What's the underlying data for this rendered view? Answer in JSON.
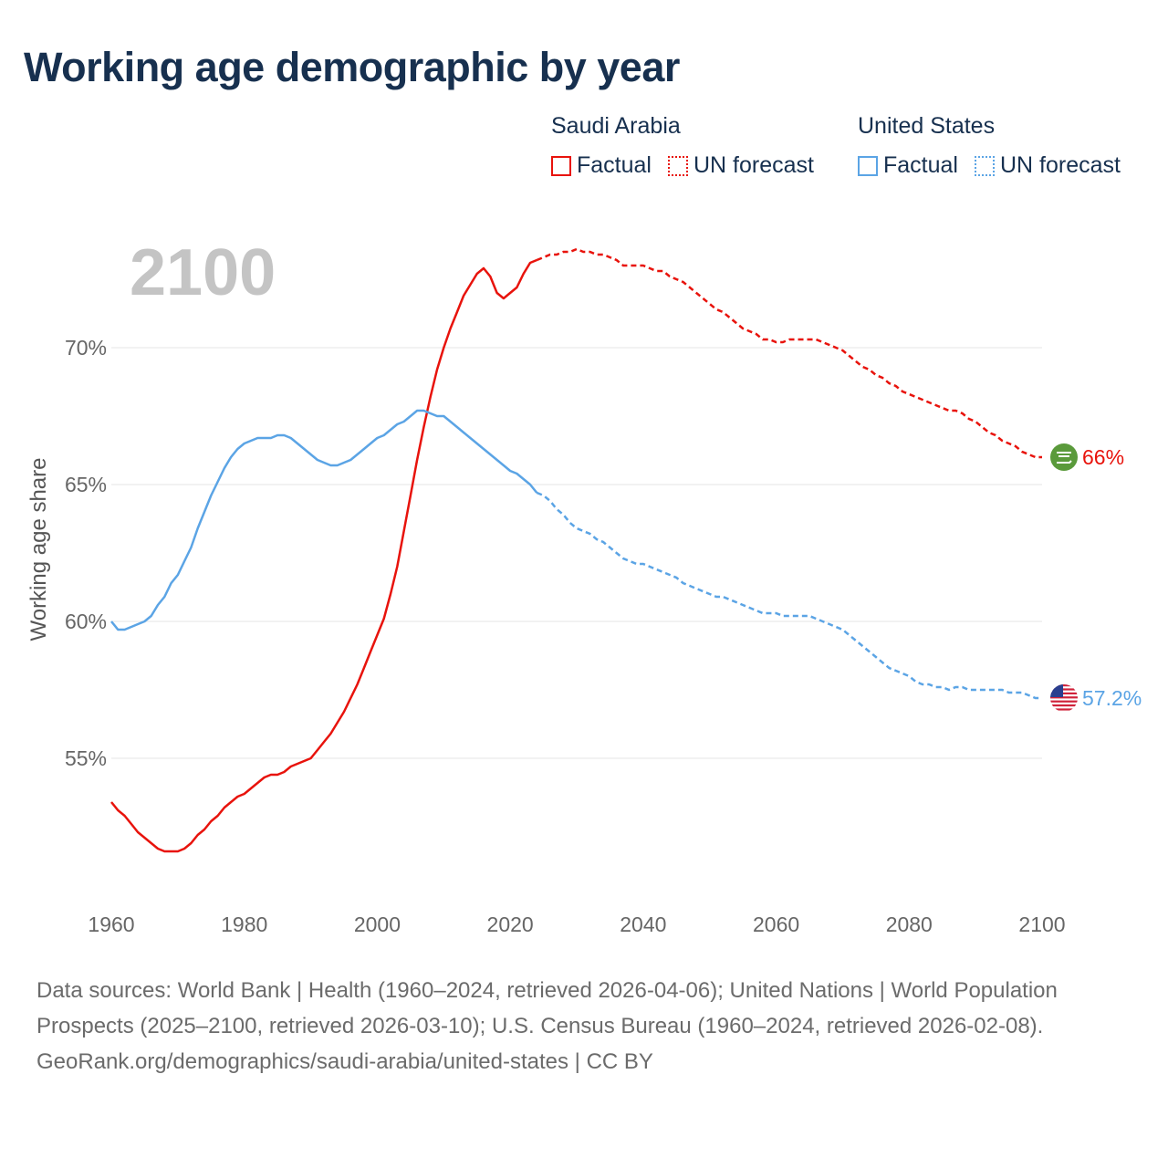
{
  "title": "Working age demographic by year",
  "year_watermark": "2100",
  "legend": {
    "groups": [
      {
        "country": "Saudi Arabia",
        "color": "#e8130c",
        "factual_label": "Factual",
        "forecast_label": "UN forecast"
      },
      {
        "country": "United States",
        "color": "#5ba4e5",
        "factual_label": "Factual",
        "forecast_label": "UN forecast"
      }
    ]
  },
  "footer": {
    "sources": "Data sources: World Bank | Health (1960–2024, retrieved 2026-04-06); United Nations | World Population Prospects (2025–2100, retrieved 2026-03-10); U.S. Census Bureau (1960–2024, retrieved 2026-02-08).",
    "credit": "GeoRank.org/demographics/saudi-arabia/united-states | CC BY"
  },
  "chart_data": {
    "type": "line",
    "title": "Working age demographic by year",
    "xlabel": "",
    "ylabel": "Working age share",
    "xlim": [
      1960,
      2100
    ],
    "ylim": [
      50,
      75
    ],
    "x_ticks": [
      1960,
      1980,
      2000,
      2020,
      2040,
      2060,
      2080,
      2100
    ],
    "y_ticks": [
      55,
      60,
      65,
      70
    ],
    "y_tick_labels": [
      "55%",
      "60%",
      "65%",
      "70%"
    ],
    "grid": true,
    "forecast_start": 2024,
    "series": [
      {
        "name": "Saudi Arabia",
        "color": "#e8130c",
        "end_label": "66%",
        "flag_icon": "saudi-arabia-flag-icon",
        "points": [
          [
            1960,
            53.4
          ],
          [
            1961,
            53.1
          ],
          [
            1962,
            52.9
          ],
          [
            1963,
            52.6
          ],
          [
            1964,
            52.3
          ],
          [
            1965,
            52.1
          ],
          [
            1966,
            51.9
          ],
          [
            1967,
            51.7
          ],
          [
            1968,
            51.6
          ],
          [
            1969,
            51.6
          ],
          [
            1970,
            51.6
          ],
          [
            1971,
            51.7
          ],
          [
            1972,
            51.9
          ],
          [
            1973,
            52.2
          ],
          [
            1974,
            52.4
          ],
          [
            1975,
            52.7
          ],
          [
            1976,
            52.9
          ],
          [
            1977,
            53.2
          ],
          [
            1978,
            53.4
          ],
          [
            1979,
            53.6
          ],
          [
            1980,
            53.7
          ],
          [
            1981,
            53.9
          ],
          [
            1982,
            54.1
          ],
          [
            1983,
            54.3
          ],
          [
            1984,
            54.4
          ],
          [
            1985,
            54.4
          ],
          [
            1986,
            54.5
          ],
          [
            1987,
            54.7
          ],
          [
            1988,
            54.8
          ],
          [
            1989,
            54.9
          ],
          [
            1990,
            55.0
          ],
          [
            1991,
            55.3
          ],
          [
            1992,
            55.6
          ],
          [
            1993,
            55.9
          ],
          [
            1994,
            56.3
          ],
          [
            1995,
            56.7
          ],
          [
            1996,
            57.2
          ],
          [
            1997,
            57.7
          ],
          [
            1998,
            58.3
          ],
          [
            1999,
            58.9
          ],
          [
            2000,
            59.5
          ],
          [
            2001,
            60.1
          ],
          [
            2002,
            61.0
          ],
          [
            2003,
            62.0
          ],
          [
            2004,
            63.3
          ],
          [
            2005,
            64.6
          ],
          [
            2006,
            65.9
          ],
          [
            2007,
            67.1
          ],
          [
            2008,
            68.2
          ],
          [
            2009,
            69.2
          ],
          [
            2010,
            70.0
          ],
          [
            2011,
            70.7
          ],
          [
            2012,
            71.3
          ],
          [
            2013,
            71.9
          ],
          [
            2014,
            72.3
          ],
          [
            2015,
            72.7
          ],
          [
            2016,
            72.9
          ],
          [
            2017,
            72.6
          ],
          [
            2018,
            72.0
          ],
          [
            2019,
            71.8
          ],
          [
            2020,
            72.0
          ],
          [
            2021,
            72.2
          ],
          [
            2022,
            72.7
          ],
          [
            2023,
            73.1
          ],
          [
            2024,
            73.2
          ],
          [
            2025,
            73.3
          ],
          [
            2026,
            73.4
          ],
          [
            2027,
            73.4
          ],
          [
            2028,
            73.5
          ],
          [
            2029,
            73.5
          ],
          [
            2030,
            73.6
          ],
          [
            2031,
            73.5
          ],
          [
            2032,
            73.5
          ],
          [
            2033,
            73.4
          ],
          [
            2034,
            73.4
          ],
          [
            2035,
            73.3
          ],
          [
            2036,
            73.2
          ],
          [
            2037,
            73.0
          ],
          [
            2038,
            73.0
          ],
          [
            2039,
            73.0
          ],
          [
            2040,
            73.0
          ],
          [
            2041,
            72.9
          ],
          [
            2042,
            72.8
          ],
          [
            2043,
            72.8
          ],
          [
            2044,
            72.6
          ],
          [
            2045,
            72.5
          ],
          [
            2046,
            72.4
          ],
          [
            2047,
            72.2
          ],
          [
            2048,
            72.0
          ],
          [
            2049,
            71.8
          ],
          [
            2050,
            71.6
          ],
          [
            2051,
            71.4
          ],
          [
            2052,
            71.3
          ],
          [
            2053,
            71.1
          ],
          [
            2054,
            70.9
          ],
          [
            2055,
            70.7
          ],
          [
            2056,
            70.6
          ],
          [
            2057,
            70.5
          ],
          [
            2058,
            70.3
          ],
          [
            2059,
            70.3
          ],
          [
            2060,
            70.2
          ],
          [
            2061,
            70.2
          ],
          [
            2062,
            70.3
          ],
          [
            2063,
            70.3
          ],
          [
            2064,
            70.3
          ],
          [
            2065,
            70.3
          ],
          [
            2066,
            70.3
          ],
          [
            2067,
            70.2
          ],
          [
            2068,
            70.1
          ],
          [
            2069,
            70.0
          ],
          [
            2070,
            69.9
          ],
          [
            2071,
            69.7
          ],
          [
            2072,
            69.5
          ],
          [
            2073,
            69.3
          ],
          [
            2074,
            69.2
          ],
          [
            2075,
            69.0
          ],
          [
            2076,
            68.9
          ],
          [
            2077,
            68.7
          ],
          [
            2078,
            68.6
          ],
          [
            2079,
            68.4
          ],
          [
            2080,
            68.3
          ],
          [
            2081,
            68.2
          ],
          [
            2082,
            68.1
          ],
          [
            2083,
            68.0
          ],
          [
            2084,
            67.9
          ],
          [
            2085,
            67.8
          ],
          [
            2086,
            67.7
          ],
          [
            2087,
            67.7
          ],
          [
            2088,
            67.6
          ],
          [
            2089,
            67.4
          ],
          [
            2090,
            67.3
          ],
          [
            2091,
            67.1
          ],
          [
            2092,
            66.9
          ],
          [
            2093,
            66.8
          ],
          [
            2094,
            66.6
          ],
          [
            2095,
            66.5
          ],
          [
            2096,
            66.4
          ],
          [
            2097,
            66.2
          ],
          [
            2098,
            66.1
          ],
          [
            2099,
            66.0
          ],
          [
            2100,
            66.0
          ]
        ]
      },
      {
        "name": "United States",
        "color": "#5ba4e5",
        "end_label": "57.2%",
        "flag_icon": "united-states-flag-icon",
        "points": [
          [
            1960,
            60.0
          ],
          [
            1961,
            59.7
          ],
          [
            1962,
            59.7
          ],
          [
            1963,
            59.8
          ],
          [
            1964,
            59.9
          ],
          [
            1965,
            60.0
          ],
          [
            1966,
            60.2
          ],
          [
            1967,
            60.6
          ],
          [
            1968,
            60.9
          ],
          [
            1969,
            61.4
          ],
          [
            1970,
            61.7
          ],
          [
            1971,
            62.2
          ],
          [
            1972,
            62.7
          ],
          [
            1973,
            63.4
          ],
          [
            1974,
            64.0
          ],
          [
            1975,
            64.6
          ],
          [
            1976,
            65.1
          ],
          [
            1977,
            65.6
          ],
          [
            1978,
            66.0
          ],
          [
            1979,
            66.3
          ],
          [
            1980,
            66.5
          ],
          [
            1981,
            66.6
          ],
          [
            1982,
            66.7
          ],
          [
            1983,
            66.7
          ],
          [
            1984,
            66.7
          ],
          [
            1985,
            66.8
          ],
          [
            1986,
            66.8
          ],
          [
            1987,
            66.7
          ],
          [
            1988,
            66.5
          ],
          [
            1989,
            66.3
          ],
          [
            1990,
            66.1
          ],
          [
            1991,
            65.9
          ],
          [
            1992,
            65.8
          ],
          [
            1993,
            65.7
          ],
          [
            1994,
            65.7
          ],
          [
            1995,
            65.8
          ],
          [
            1996,
            65.9
          ],
          [
            1997,
            66.1
          ],
          [
            1998,
            66.3
          ],
          [
            1999,
            66.5
          ],
          [
            2000,
            66.7
          ],
          [
            2001,
            66.8
          ],
          [
            2002,
            67.0
          ],
          [
            2003,
            67.2
          ],
          [
            2004,
            67.3
          ],
          [
            2005,
            67.5
          ],
          [
            2006,
            67.7
          ],
          [
            2007,
            67.7
          ],
          [
            2008,
            67.6
          ],
          [
            2009,
            67.5
          ],
          [
            2010,
            67.5
          ],
          [
            2011,
            67.3
          ],
          [
            2012,
            67.1
          ],
          [
            2013,
            66.9
          ],
          [
            2014,
            66.7
          ],
          [
            2015,
            66.5
          ],
          [
            2016,
            66.3
          ],
          [
            2017,
            66.1
          ],
          [
            2018,
            65.9
          ],
          [
            2019,
            65.7
          ],
          [
            2020,
            65.5
          ],
          [
            2021,
            65.4
          ],
          [
            2022,
            65.2
          ],
          [
            2023,
            65.0
          ],
          [
            2024,
            64.7
          ],
          [
            2025,
            64.6
          ],
          [
            2026,
            64.4
          ],
          [
            2027,
            64.1
          ],
          [
            2028,
            63.9
          ],
          [
            2029,
            63.6
          ],
          [
            2030,
            63.4
          ],
          [
            2031,
            63.3
          ],
          [
            2032,
            63.2
          ],
          [
            2033,
            63.0
          ],
          [
            2034,
            62.9
          ],
          [
            2035,
            62.7
          ],
          [
            2036,
            62.5
          ],
          [
            2037,
            62.3
          ],
          [
            2038,
            62.2
          ],
          [
            2039,
            62.1
          ],
          [
            2040,
            62.1
          ],
          [
            2041,
            62.0
          ],
          [
            2042,
            61.9
          ],
          [
            2043,
            61.8
          ],
          [
            2044,
            61.7
          ],
          [
            2045,
            61.6
          ],
          [
            2046,
            61.4
          ],
          [
            2047,
            61.3
          ],
          [
            2048,
            61.2
          ],
          [
            2049,
            61.1
          ],
          [
            2050,
            61.0
          ],
          [
            2051,
            60.9
          ],
          [
            2052,
            60.9
          ],
          [
            2053,
            60.8
          ],
          [
            2054,
            60.7
          ],
          [
            2055,
            60.6
          ],
          [
            2056,
            60.5
          ],
          [
            2057,
            60.4
          ],
          [
            2058,
            60.3
          ],
          [
            2059,
            60.3
          ],
          [
            2060,
            60.3
          ],
          [
            2061,
            60.2
          ],
          [
            2062,
            60.2
          ],
          [
            2063,
            60.2
          ],
          [
            2064,
            60.2
          ],
          [
            2065,
            60.2
          ],
          [
            2066,
            60.1
          ],
          [
            2067,
            60.0
          ],
          [
            2068,
            59.9
          ],
          [
            2069,
            59.8
          ],
          [
            2070,
            59.7
          ],
          [
            2071,
            59.5
          ],
          [
            2072,
            59.3
          ],
          [
            2073,
            59.1
          ],
          [
            2074,
            58.9
          ],
          [
            2075,
            58.7
          ],
          [
            2076,
            58.5
          ],
          [
            2077,
            58.3
          ],
          [
            2078,
            58.2
          ],
          [
            2079,
            58.1
          ],
          [
            2080,
            58.0
          ],
          [
            2081,
            57.8
          ],
          [
            2082,
            57.7
          ],
          [
            2083,
            57.7
          ],
          [
            2084,
            57.6
          ],
          [
            2085,
            57.6
          ],
          [
            2086,
            57.5
          ],
          [
            2087,
            57.6
          ],
          [
            2088,
            57.6
          ],
          [
            2089,
            57.5
          ],
          [
            2090,
            57.5
          ],
          [
            2091,
            57.5
          ],
          [
            2092,
            57.5
          ],
          [
            2093,
            57.5
          ],
          [
            2094,
            57.5
          ],
          [
            2095,
            57.4
          ],
          [
            2096,
            57.4
          ],
          [
            2097,
            57.4
          ],
          [
            2098,
            57.3
          ],
          [
            2099,
            57.2
          ],
          [
            2100,
            57.2
          ]
        ]
      }
    ]
  }
}
